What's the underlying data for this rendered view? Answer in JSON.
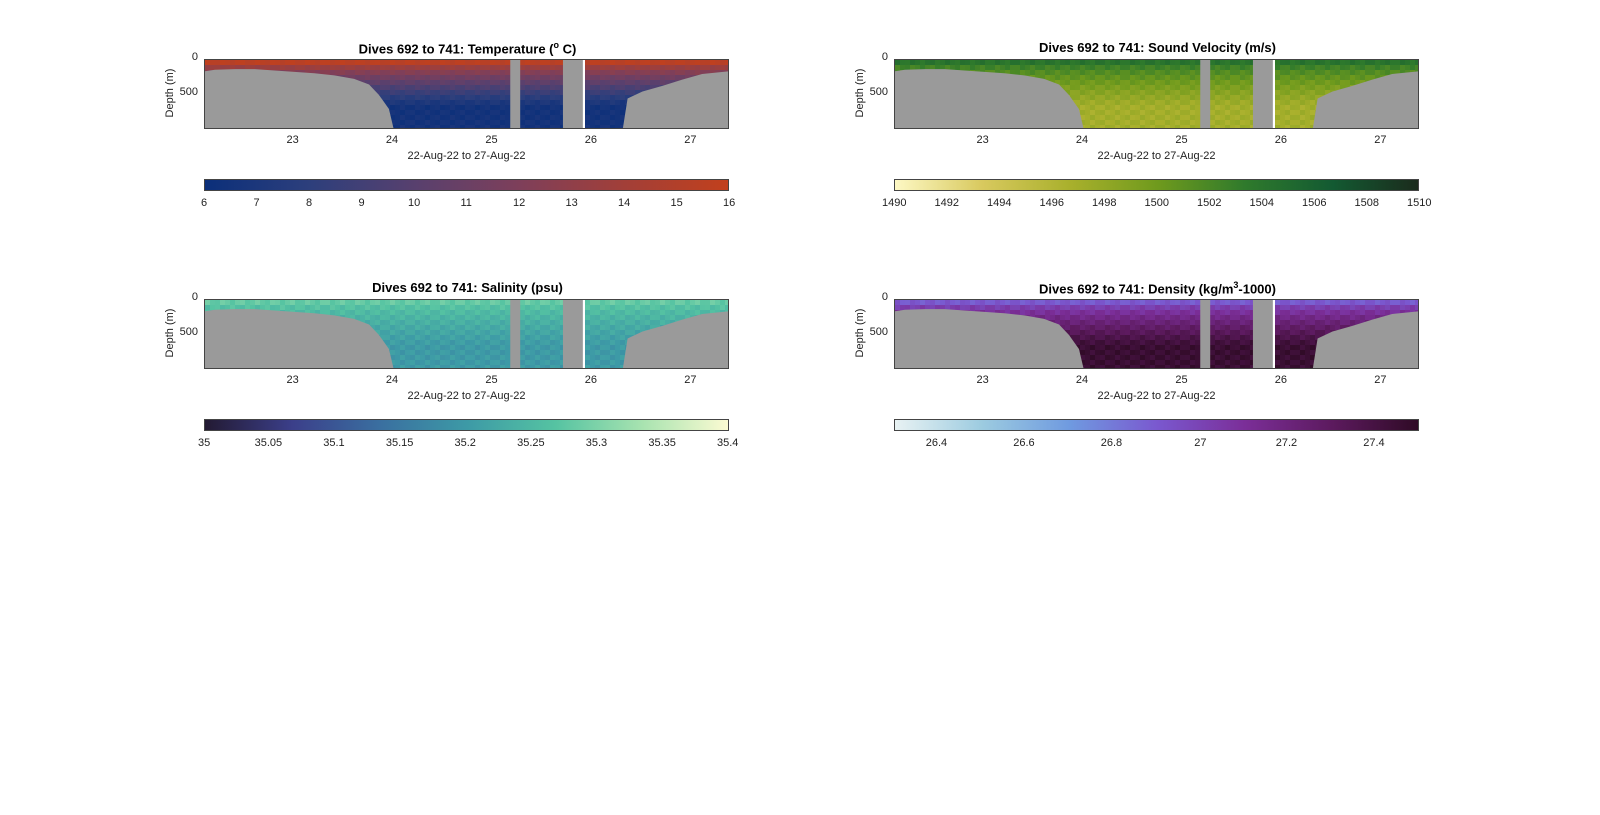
{
  "chart_data": [
    {
      "type": "heatmap",
      "title": "Dives 692 to 741: Temperature (",
      "title_sup": "o",
      "title_tail": " C)",
      "ylabel": "Depth (m)",
      "xlabel": "22-Aug-22 to 27-Aug-22",
      "xlim": [
        22.1,
        27.38
      ],
      "ylim": [
        0,
        1000
      ],
      "y_reversed": true,
      "x_ticks": [
        "23",
        "24",
        "25",
        "26",
        "27"
      ],
      "x_tick_values": [
        23,
        24,
        25,
        26,
        27
      ],
      "y_ticks": [
        "0",
        "500"
      ],
      "y_tick_values": [
        0,
        500
      ],
      "colorbar": {
        "ticks": [
          "6",
          "7",
          "8",
          "9",
          "10",
          "11",
          "12",
          "13",
          "14",
          "15",
          "16"
        ],
        "tick_values": [
          6,
          7,
          8,
          9,
          10,
          11,
          12,
          13,
          14,
          15,
          16
        ],
        "range": [
          6,
          16
        ],
        "colormap": [
          "#0b2f7a",
          "#2d3f7c",
          "#58406e",
          "#7e3f5a",
          "#a23f38",
          "#c2401c"
        ]
      },
      "surface_value": 15.5,
      "deep_value": 6.5
    },
    {
      "type": "heatmap",
      "title": "Dives 692 to 741: Sound Velocity (m/s)",
      "ylabel": "Depth (m)",
      "xlabel": "22-Aug-22 to 27-Aug-22",
      "xlim": [
        22.1,
        27.38
      ],
      "ylim": [
        0,
        1000
      ],
      "y_reversed": true,
      "x_ticks": [
        "23",
        "24",
        "25",
        "26",
        "27"
      ],
      "x_tick_values": [
        23,
        24,
        25,
        26,
        27
      ],
      "y_ticks": [
        "0",
        "500"
      ],
      "y_tick_values": [
        0,
        500
      ],
      "colorbar": {
        "ticks": [
          "1490",
          "1492",
          "1494",
          "1496",
          "1498",
          "1500",
          "1502",
          "1504",
          "1506",
          "1508",
          "1510"
        ],
        "tick_values": [
          1490,
          1492,
          1494,
          1496,
          1498,
          1500,
          1502,
          1504,
          1506,
          1508,
          1510
        ],
        "range": [
          1490,
          1510
        ],
        "colormap": [
          "#fdf8c4",
          "#d8c95e",
          "#a9b02c",
          "#6f9a1d",
          "#2f7a2c",
          "#135a32",
          "#1b2a1c"
        ]
      },
      "surface_value": 1504,
      "deep_value": 1497
    },
    {
      "type": "heatmap",
      "title": "Dives 692 to 741: Salinity (psu)",
      "ylabel": "Depth (m)",
      "xlabel": "22-Aug-22 to 27-Aug-22",
      "xlim": [
        22.1,
        27.38
      ],
      "ylim": [
        0,
        1000
      ],
      "y_reversed": true,
      "x_ticks": [
        "23",
        "24",
        "25",
        "26",
        "27"
      ],
      "x_tick_values": [
        23,
        24,
        25,
        26,
        27
      ],
      "y_ticks": [
        "0",
        "500"
      ],
      "y_tick_values": [
        0,
        500
      ],
      "colorbar": {
        "ticks": [
          "35",
          "35.05",
          "35.1",
          "35.15",
          "35.2",
          "35.25",
          "35.3",
          "35.35",
          "35.4"
        ],
        "tick_values": [
          35,
          35.05,
          35.1,
          35.15,
          35.2,
          35.25,
          35.3,
          35.35,
          35.4
        ],
        "range": [
          35,
          35.4
        ],
        "colormap": [
          "#231a33",
          "#3b3f8a",
          "#3a6fa0",
          "#3d9aa6",
          "#55c3a2",
          "#a8e3b0",
          "#fdfbd3"
        ]
      },
      "surface_value": 35.28,
      "deep_value": 35.2
    },
    {
      "type": "heatmap",
      "title": "Dives 692 to 741: Density (kg/m",
      "title_sup": "3",
      "title_tail": "-1000)",
      "ylabel": "Depth (m)",
      "xlabel": "22-Aug-22 to 27-Aug-22",
      "xlim": [
        22.1,
        27.38
      ],
      "ylim": [
        0,
        1000
      ],
      "y_reversed": true,
      "x_ticks": [
        "23",
        "24",
        "25",
        "26",
        "27"
      ],
      "x_tick_values": [
        23,
        24,
        25,
        26,
        27
      ],
      "y_ticks": [
        "0",
        "500"
      ],
      "y_tick_values": [
        0,
        500
      ],
      "colorbar": {
        "ticks": [
          "26.4",
          "26.6",
          "26.8",
          "27",
          "27.2",
          "27.4"
        ],
        "tick_values": [
          26.4,
          26.6,
          26.8,
          27,
          27.2,
          27.4
        ],
        "range": [
          26.3,
          27.5
        ],
        "colormap": [
          "#e8f2f3",
          "#9ccbe0",
          "#6f9ae0",
          "#7a58cf",
          "#7b2e98",
          "#5c1a5e",
          "#2e0a24"
        ]
      },
      "surface_value": 26.9,
      "deep_value": 27.45
    }
  ],
  "colors": {
    "no_data": "#9a9a9a",
    "axis": "#444444"
  }
}
